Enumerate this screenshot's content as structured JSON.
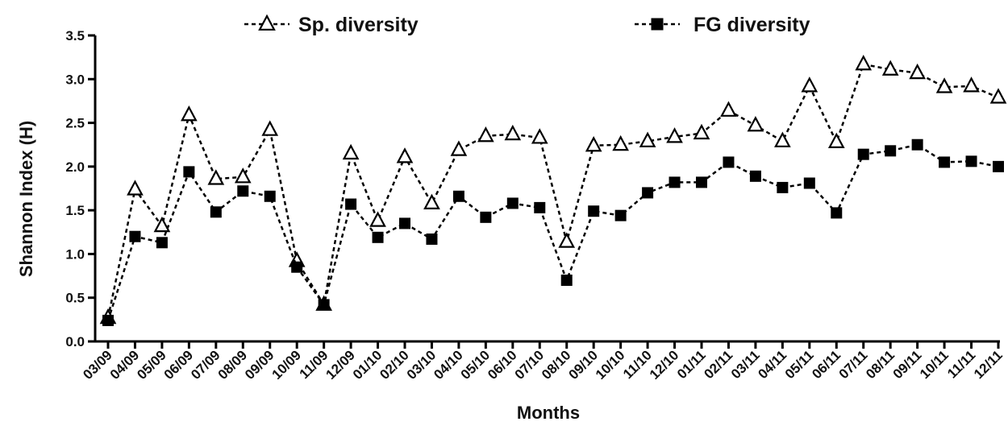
{
  "chart_data": {
    "type": "line",
    "title": "",
    "xlabel": "Months",
    "ylabel": "Shannon Index (H)",
    "ylim": [
      0,
      3.5
    ],
    "yticks": [
      "0.0",
      "0.5",
      "1.0",
      "1.5",
      "2.0",
      "2.5",
      "3.0",
      "3.5"
    ],
    "grid": false,
    "legend_position": "top",
    "categories": [
      "03/09",
      "04/09",
      "05/09",
      "06/09",
      "07/09",
      "08/09",
      "09/09",
      "10/09",
      "11/09",
      "12/09",
      "01/10",
      "02/10",
      "03/10",
      "04/10",
      "05/10",
      "06/10",
      "07/10",
      "08/10",
      "09/10",
      "10/10",
      "11/10",
      "12/10",
      "01/11",
      "02/11",
      "03/11",
      "04/11",
      "05/11",
      "06/11",
      "07/11",
      "08/11",
      "09/11",
      "10/11",
      "11/11",
      "12/11"
    ],
    "series": [
      {
        "name": "Sp. diversity",
        "marker": "open-triangle",
        "color": "#000000",
        "values": [
          0.27,
          1.74,
          1.32,
          2.59,
          1.86,
          1.88,
          2.42,
          0.92,
          0.42,
          2.15,
          1.38,
          2.11,
          1.58,
          2.19,
          2.35,
          2.37,
          2.33,
          1.14,
          2.24,
          2.25,
          2.29,
          2.34,
          2.38,
          2.64,
          2.47,
          2.29,
          2.92,
          2.28,
          3.17,
          3.11,
          3.07,
          2.91,
          2.92,
          2.79
        ]
      },
      {
        "name": "FG diversity",
        "marker": "filled-square",
        "color": "#000000",
        "values": [
          0.24,
          1.2,
          1.13,
          1.94,
          1.48,
          1.72,
          1.66,
          0.85,
          0.42,
          1.57,
          1.19,
          1.35,
          1.17,
          1.66,
          1.42,
          1.58,
          1.53,
          0.7,
          1.49,
          1.44,
          1.7,
          1.82,
          1.82,
          2.05,
          1.89,
          1.76,
          1.81,
          1.47,
          2.14,
          2.18,
          2.25,
          2.05,
          2.06,
          2.0
        ]
      }
    ]
  }
}
